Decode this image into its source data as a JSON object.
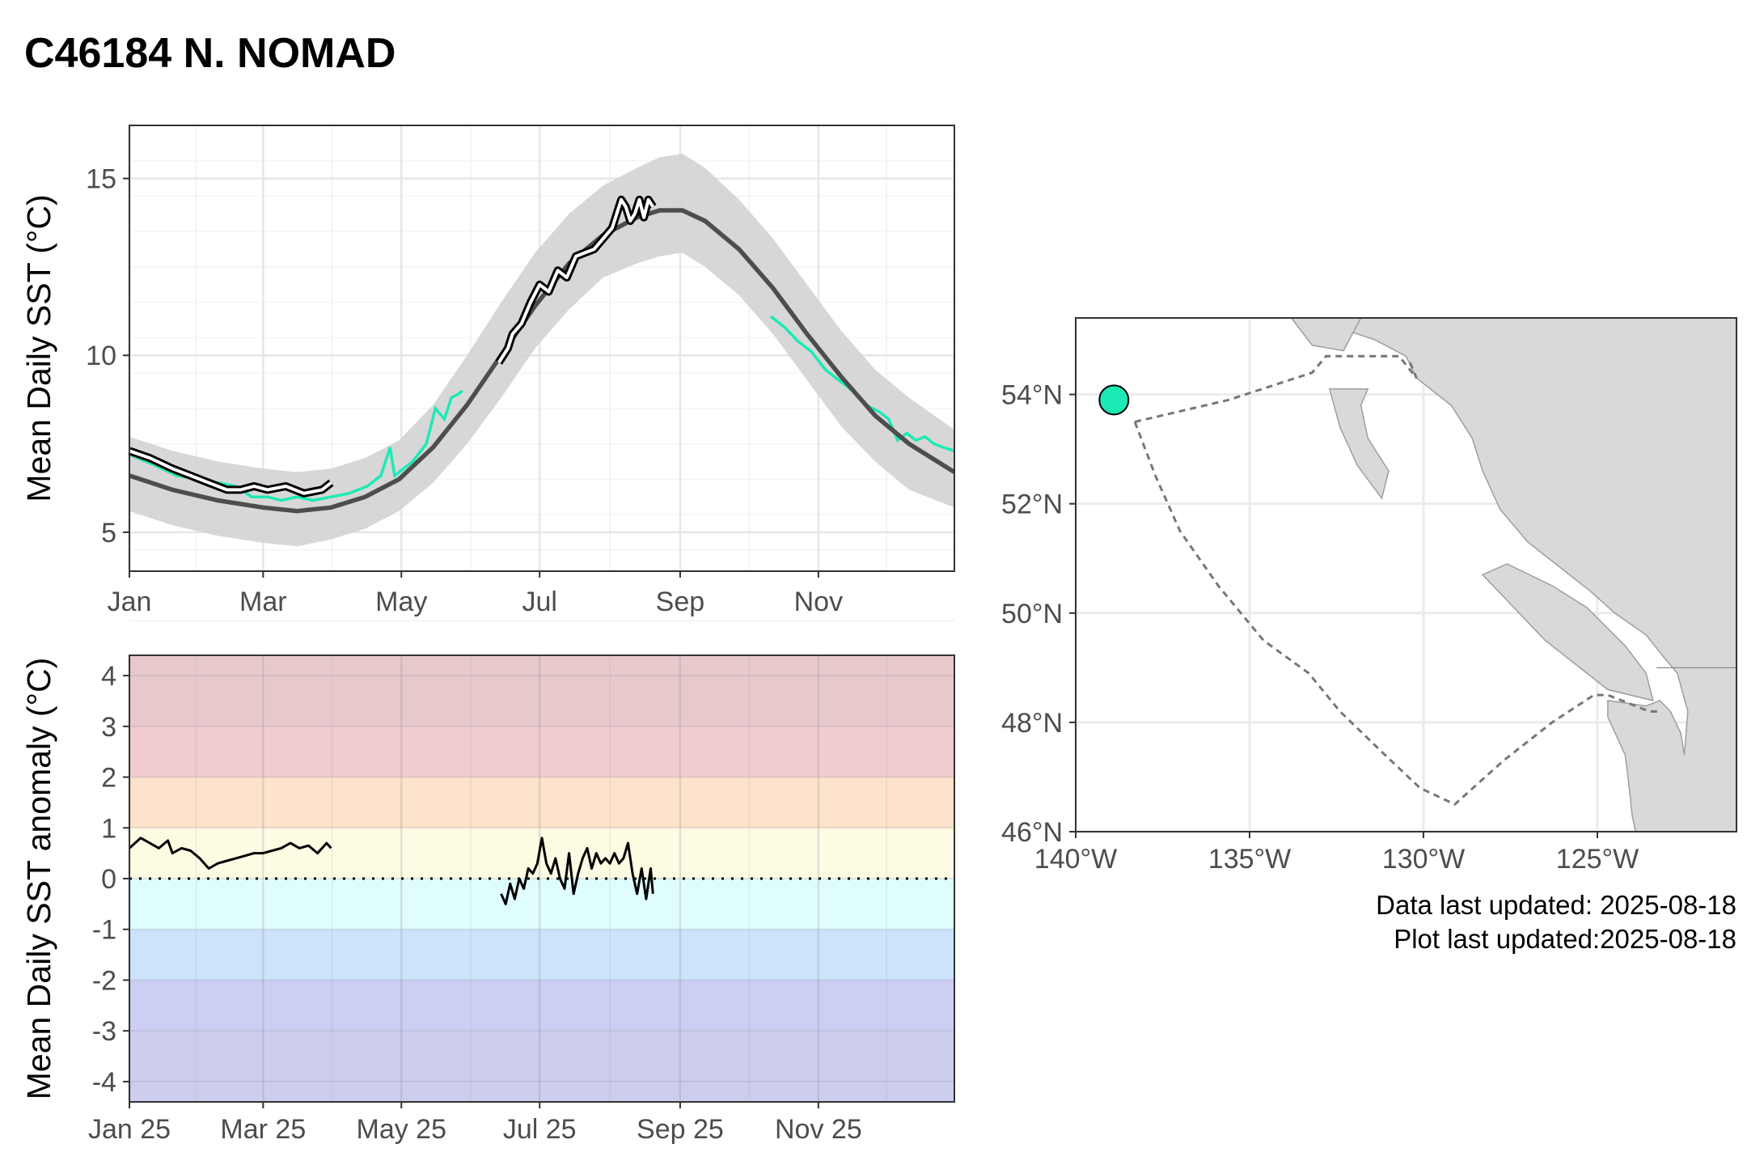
{
  "title": "C46184 N. NOMAD",
  "caption": {
    "data_updated": "Data last updated: 2025-08-18",
    "plot_updated": "Plot last updated:2025-08-18"
  },
  "colors": {
    "climatology_line": "#4d4d4d",
    "climatology_band": "#d3d3d3",
    "previous_year_line": "#1de9b6",
    "current_year_line": "#000000",
    "current_year_halo": "#ffffff",
    "station_marker": "#1de9b6",
    "land": "#d9d9d9",
    "coastline": "#9e9e9e",
    "region_boundary": "#777777"
  },
  "chart_data": [
    {
      "type": "line",
      "ylabel": "Mean Daily SST (°C)",
      "x_unit": "day of year",
      "xlim": [
        1,
        365
      ],
      "ylim": [
        3.9,
        16.5
      ],
      "grid": true,
      "x_ticks": [
        {
          "label": "Jan",
          "day": 1
        },
        {
          "label": "Mar",
          "day": 60
        },
        {
          "label": "May",
          "day": 121
        },
        {
          "label": "Jul",
          "day": 182
        },
        {
          "label": "Sep",
          "day": 244
        },
        {
          "label": "Nov",
          "day": 305
        }
      ],
      "y_ticks": [
        5,
        10,
        15
      ],
      "climatology": {
        "x": [
          1,
          20,
          40,
          60,
          75,
          90,
          105,
          120,
          135,
          150,
          165,
          180,
          195,
          210,
          225,
          235,
          245,
          255,
          270,
          285,
          300,
          315,
          330,
          345,
          365
        ],
        "mean": [
          6.6,
          6.2,
          5.9,
          5.7,
          5.6,
          5.7,
          6.0,
          6.5,
          7.4,
          8.6,
          10.0,
          11.4,
          12.6,
          13.4,
          13.9,
          14.1,
          14.1,
          13.8,
          13.0,
          11.9,
          10.6,
          9.4,
          8.3,
          7.5,
          6.7
        ],
        "lower": [
          5.6,
          5.2,
          4.9,
          4.7,
          4.6,
          4.8,
          5.1,
          5.6,
          6.4,
          7.5,
          8.8,
          10.2,
          11.3,
          12.2,
          12.6,
          12.8,
          12.9,
          12.5,
          11.7,
          10.6,
          9.3,
          8.0,
          7.0,
          6.2,
          5.7
        ],
        "upper": [
          7.7,
          7.3,
          7.0,
          6.8,
          6.7,
          6.8,
          7.1,
          7.6,
          8.6,
          10.0,
          11.5,
          12.9,
          14.0,
          14.8,
          15.3,
          15.6,
          15.7,
          15.3,
          14.4,
          13.3,
          12.0,
          10.7,
          9.6,
          8.8,
          7.9
        ]
      },
      "previous_year": [
        {
          "x": [
            1,
            12,
            22,
            32,
            40,
            48,
            55,
            62,
            68,
            75,
            82,
            90,
            98,
            106,
            112,
            116,
            118,
            120,
            126,
            132,
            136,
            140,
            143,
            146,
            148
          ],
          "y": [
            7.2,
            6.9,
            6.6,
            6.5,
            6.4,
            6.3,
            6.0,
            6.0,
            5.9,
            6.0,
            5.9,
            6.0,
            6.1,
            6.3,
            6.6,
            7.4,
            6.6,
            6.7,
            7.0,
            7.5,
            8.5,
            8.2,
            8.8,
            8.9,
            9.0
          ]
        },
        {
          "x": [
            284,
            290,
            296,
            302,
            308,
            314,
            320,
            326,
            332,
            336,
            340,
            344,
            348,
            352,
            356,
            360,
            365
          ],
          "y": [
            11.1,
            10.8,
            10.4,
            10.1,
            9.6,
            9.3,
            9.0,
            8.6,
            8.4,
            8.2,
            7.6,
            7.8,
            7.6,
            7.7,
            7.5,
            7.4,
            7.3
          ]
        }
      ],
      "current_year": [
        {
          "x": [
            1,
            10,
            20,
            28,
            36,
            44,
            50,
            56,
            62,
            70,
            78,
            86,
            90
          ],
          "y": [
            7.3,
            7.1,
            6.8,
            6.6,
            6.4,
            6.2,
            6.2,
            6.3,
            6.2,
            6.3,
            6.1,
            6.2,
            6.4
          ]
        },
        {
          "x": [
            164,
            168,
            170,
            174,
            178,
            182,
            186,
            190,
            194,
            198,
            202,
            206,
            210,
            214,
            218,
            220,
            222,
            224,
            226,
            228,
            230,
            232
          ],
          "y": [
            9.8,
            10.2,
            10.6,
            10.9,
            11.5,
            12.0,
            11.8,
            12.4,
            12.2,
            12.8,
            12.9,
            13.0,
            13.3,
            13.6,
            14.4,
            14.2,
            13.8,
            14.0,
            14.4,
            13.9,
            14.4,
            14.2
          ]
        }
      ]
    },
    {
      "type": "line",
      "ylabel": "Mean Daily SST anomaly (°C)",
      "x_unit": "day of year 2025",
      "xlim": [
        1,
        365
      ],
      "ylim": [
        -4.4,
        4.4
      ],
      "grid": true,
      "x_ticks": [
        {
          "label": "Jan 25",
          "day": 1
        },
        {
          "label": "Mar 25",
          "day": 60
        },
        {
          "label": "May 25",
          "day": 121
        },
        {
          "label": "Jul 25",
          "day": 182
        },
        {
          "label": "Sep 25",
          "day": 244
        },
        {
          "label": "Nov 25",
          "day": 305
        }
      ],
      "y_ticks": [
        4,
        3,
        2,
        1,
        0,
        -1,
        -2,
        -3,
        -4
      ],
      "reference_line": 0,
      "bands": [
        {
          "from": 3,
          "to": 4.4,
          "color": "#e7c9cc"
        },
        {
          "from": 2,
          "to": 3,
          "color": "#f2cbcf"
        },
        {
          "from": 1,
          "to": 2,
          "color": "#fde3cb"
        },
        {
          "from": 0,
          "to": 1,
          "color": "#fefbe3"
        },
        {
          "from": -1,
          "to": 0,
          "color": "#e0fdfe"
        },
        {
          "from": -2,
          "to": -1,
          "color": "#cce3fb"
        },
        {
          "from": -3,
          "to": -2,
          "color": "#cccef3"
        },
        {
          "from": -4.4,
          "to": -3,
          "color": "#cdcdee"
        }
      ],
      "series": [
        {
          "x": [
            1,
            6,
            10,
            14,
            18,
            20,
            24,
            28,
            32,
            36,
            40,
            44,
            48,
            52,
            56,
            60,
            64,
            68,
            72,
            76,
            80,
            84,
            88,
            90
          ],
          "y": [
            0.6,
            0.8,
            0.7,
            0.6,
            0.75,
            0.5,
            0.6,
            0.55,
            0.4,
            0.2,
            0.3,
            0.35,
            0.4,
            0.45,
            0.5,
            0.5,
            0.55,
            0.6,
            0.7,
            0.6,
            0.65,
            0.5,
            0.7,
            0.6
          ]
        },
        {
          "x": [
            165,
            167,
            169,
            171,
            173,
            175,
            177,
            179,
            181,
            183,
            185,
            187,
            189,
            191,
            193,
            195,
            197,
            199,
            201,
            203,
            205,
            207,
            209,
            211,
            213,
            215,
            217,
            219,
            221,
            223,
            225,
            227,
            229,
            231,
            232
          ],
          "y": [
            -0.3,
            -0.5,
            -0.1,
            -0.4,
            0.0,
            -0.2,
            0.2,
            0.1,
            0.3,
            0.8,
            0.3,
            0.1,
            0.4,
            0.0,
            -0.2,
            0.5,
            -0.3,
            0.1,
            0.4,
            0.6,
            0.2,
            0.5,
            0.3,
            0.4,
            0.3,
            0.5,
            0.3,
            0.4,
            0.7,
            0.1,
            -0.3,
            0.2,
            -0.4,
            0.2,
            -0.3
          ]
        }
      ]
    },
    {
      "type": "map",
      "xlim": [
        -140,
        -121
      ],
      "ylim": [
        46,
        55.4
      ],
      "grid": true,
      "x_ticks": [
        {
          "label": "140°W",
          "lon": -140
        },
        {
          "label": "135°W",
          "lon": -135
        },
        {
          "label": "130°W",
          "lon": -130
        },
        {
          "label": "125°W",
          "lon": -125
        }
      ],
      "y_ticks": [
        {
          "label": "54°N",
          "lat": 54
        },
        {
          "label": "52°N",
          "lat": 52
        },
        {
          "label": "50°N",
          "lat": 50
        },
        {
          "label": "48°N",
          "lat": 48
        },
        {
          "label": "46°N",
          "lat": 46
        }
      ],
      "station": {
        "lon": -138.9,
        "lat": 53.9
      },
      "mainland": [
        [
          -133.8,
          55.4
        ],
        [
          -121,
          55.4
        ],
        [
          -121,
          46
        ],
        [
          -123.9,
          46
        ],
        [
          -124.0,
          46.3
        ],
        [
          -124.1,
          46.9
        ],
        [
          -124.2,
          47.4
        ],
        [
          -124.7,
          48.1
        ],
        [
          -124.7,
          48.4
        ],
        [
          -123.6,
          48.3
        ],
        [
          -123.2,
          48.4
        ],
        [
          -122.9,
          48.2
        ],
        [
          -122.6,
          47.8
        ],
        [
          -122.5,
          47.4
        ],
        [
          -122.4,
          48.2
        ],
        [
          -122.7,
          48.9
        ],
        [
          -123.1,
          49.2
        ],
        [
          -123.6,
          49.6
        ],
        [
          -124.5,
          50.0
        ],
        [
          -125.2,
          50.4
        ],
        [
          -126.2,
          50.9
        ],
        [
          -127.0,
          51.3
        ],
        [
          -127.8,
          51.9
        ],
        [
          -128.3,
          52.6
        ],
        [
          -128.6,
          53.2
        ],
        [
          -129.2,
          53.8
        ],
        [
          -130.2,
          54.3
        ],
        [
          -130.5,
          54.7
        ],
        [
          -131.4,
          55.0
        ],
        [
          -132.8,
          55.3
        ]
      ],
      "islands": [
        [
          [
            -123.4,
            48.4
          ],
          [
            -124.7,
            48.6
          ],
          [
            -125.7,
            49.1
          ],
          [
            -126.5,
            49.5
          ],
          [
            -127.4,
            50.1
          ],
          [
            -128.3,
            50.7
          ],
          [
            -127.6,
            50.9
          ],
          [
            -126.3,
            50.5
          ],
          [
            -125.3,
            50.1
          ],
          [
            -124.2,
            49.4
          ],
          [
            -123.6,
            48.9
          ]
        ],
        [
          [
            -131.6,
            54.1
          ],
          [
            -132.7,
            54.1
          ],
          [
            -132.4,
            53.4
          ],
          [
            -131.9,
            52.7
          ],
          [
            -131.2,
            52.1
          ],
          [
            -131.0,
            52.6
          ],
          [
            -131.6,
            53.2
          ],
          [
            -131.8,
            53.8
          ]
        ],
        [
          [
            -131.8,
            55.4
          ],
          [
            -133.8,
            55.4
          ],
          [
            -133.2,
            54.9
          ],
          [
            -132.3,
            54.8
          ]
        ]
      ],
      "boundary": [
        [
          -138.3,
          53.5
        ],
        [
          -135.6,
          53.9
        ],
        [
          -133.2,
          54.4
        ],
        [
          -132.8,
          54.7
        ],
        [
          -131.1,
          54.7
        ],
        [
          -130.7,
          54.7
        ],
        [
          -130.2,
          54.3
        ],
        [
          -130.4,
          54.6
        ]
      ],
      "boundary_outer": [
        [
          -138.3,
          53.5
        ],
        [
          -137.7,
          52.5
        ],
        [
          -137.0,
          51.5
        ],
        [
          -135.9,
          50.5
        ],
        [
          -134.6,
          49.5
        ],
        [
          -133.3,
          48.9
        ],
        [
          -132.4,
          48.2
        ],
        [
          -131.1,
          47.4
        ],
        [
          -130.1,
          46.8
        ],
        [
          -129.1,
          46.5
        ],
        [
          -127.7,
          47.3
        ],
        [
          -126.3,
          48.0
        ],
        [
          -125.1,
          48.5
        ],
        [
          -124.7,
          48.5
        ],
        [
          -123.5,
          48.2
        ],
        [
          -123.2,
          48.2
        ]
      ]
    }
  ]
}
